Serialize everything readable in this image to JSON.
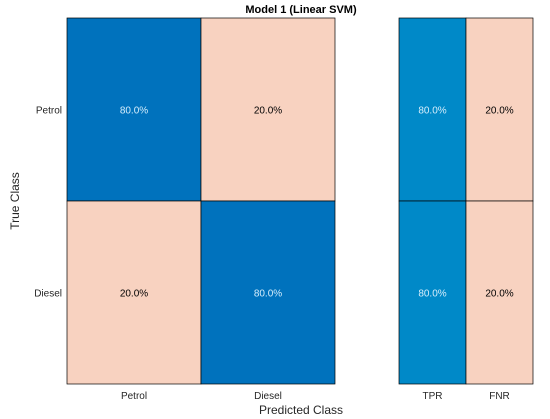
{
  "chart_data": {
    "type": "heatmap",
    "title": "Model 1 (Linear SVM)",
    "xlabel": "Predicted Class",
    "ylabel": "True Class",
    "classes": [
      "Petrol",
      "Diesel"
    ],
    "matrix": [
      [
        "80.0%",
        "20.0%"
      ],
      [
        "20.0%",
        "80.0%"
      ]
    ],
    "matrix_values": [
      [
        80.0,
        20.0
      ],
      [
        20.0,
        80.0
      ]
    ],
    "summary_columns": [
      "TPR",
      "FNR"
    ],
    "summary": [
      [
        "80.0%",
        "20.0%"
      ],
      [
        "80.0%",
        "20.0%"
      ]
    ],
    "summary_values": [
      [
        80.0,
        20.0
      ],
      [
        80.0,
        20.0
      ]
    ],
    "colors": {
      "diagonal": "#0072bd",
      "off_diagonal": "#f8d2c0",
      "tpr": "#0089c8",
      "fnr": "#f8d2c0",
      "text_light": "#d6eefc",
      "text_dark": "#000000"
    }
  }
}
